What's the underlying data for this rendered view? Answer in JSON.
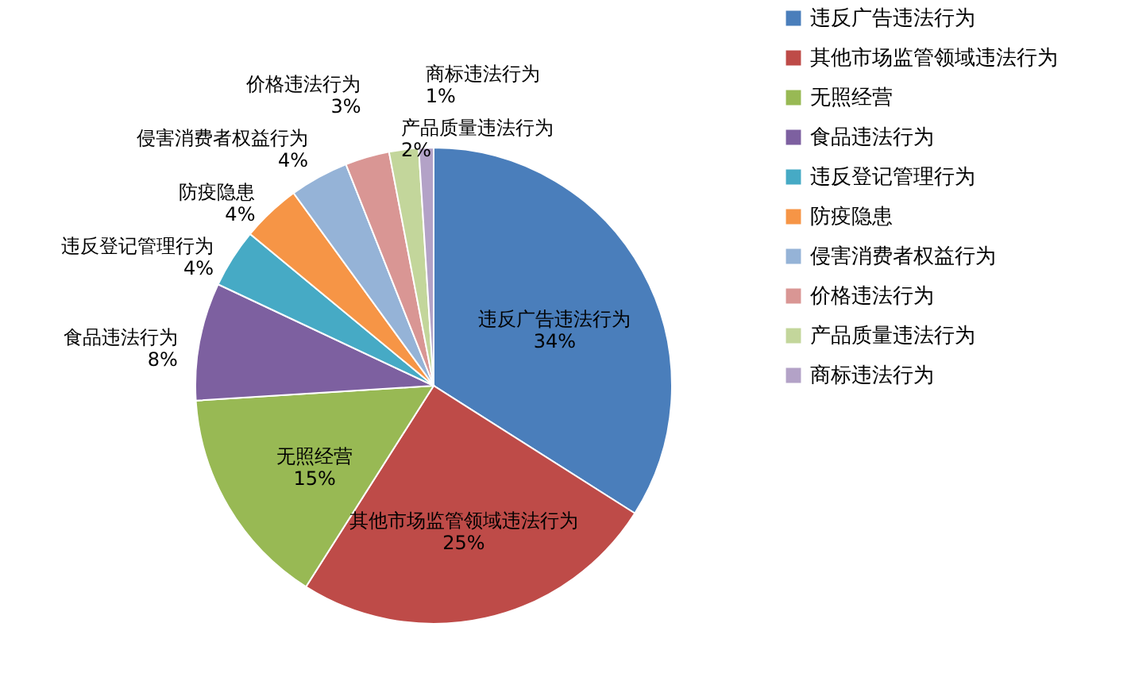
{
  "chart_data": {
    "type": "pie",
    "categories": [
      "违反广告违法行为",
      "其他市场监管领域违法行为",
      "无照经营",
      "食品违法行为",
      "违反登记管理行为",
      "防疫隐患",
      "侵害消费者权益行为",
      "价格违法行为",
      "产品质量违法行为",
      "商标违法行为"
    ],
    "values": [
      34,
      25,
      15,
      8,
      4,
      4,
      4,
      3,
      2,
      1
    ],
    "colors": [
      "#4a7ebb",
      "#be4b48",
      "#98b954",
      "#7d60a0",
      "#46aac5",
      "#f69546",
      "#95b3d7",
      "#d99694",
      "#c3d69b",
      "#b3a2c7"
    ],
    "value_labels": [
      "34%",
      "25%",
      "15%",
      "8%",
      "4%",
      "4%",
      "4%",
      "3%",
      "2%",
      "1%"
    ],
    "legend": "right"
  }
}
